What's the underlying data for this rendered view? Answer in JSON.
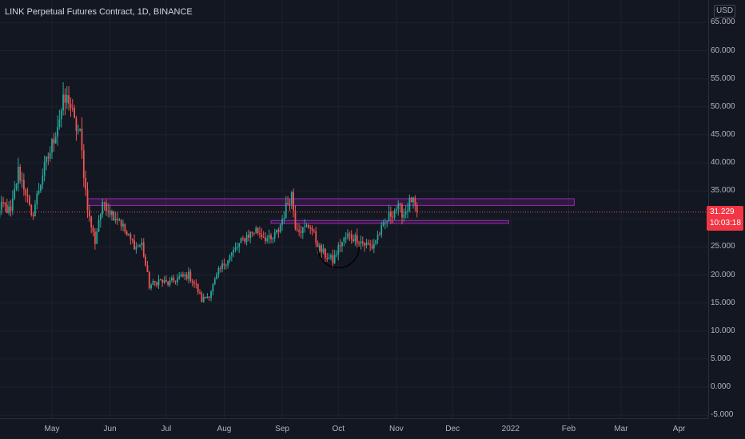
{
  "header": {
    "title": "LINK Perpetual Futures Contract, 1D, BINANCE",
    "currency": "USD"
  },
  "colors": {
    "background": "#131722",
    "grid": "#1e222d",
    "up": "#26a69a",
    "down": "#ef5350",
    "zone": "#9c27b0",
    "last_price_bg": "#f23645"
  },
  "chart_data": {
    "type": "candlestick",
    "title": "LINK Perpetual Futures Contract, 1D, BINANCE",
    "ylim": [
      -5,
      67
    ],
    "y_ticks": [
      65,
      60,
      55,
      50,
      45,
      40,
      35,
      30,
      25,
      20,
      15,
      10,
      5,
      0,
      -5
    ],
    "y_tick_labels": [
      "65.000",
      "60.000",
      "55.000",
      "50.000",
      "45.000",
      "40.000",
      "35.000",
      "30.000",
      "25.000",
      "20.000",
      "15.000",
      "10.000",
      "5.000",
      "0.000",
      "-5.000"
    ],
    "x_ticks": [
      "2021-05-01",
      "2021-06-01",
      "2021-07-01",
      "2021-08-01",
      "2021-09-01",
      "2021-10-01",
      "2021-11-01",
      "2021-12-01",
      "2022-01-01",
      "2022-02-01",
      "2022-03-01",
      "2022-04-01"
    ],
    "x_tick_labels": [
      "May",
      "Jun",
      "Jul",
      "Aug",
      "Sep",
      "Oct",
      "Nov",
      "Dec",
      "2022",
      "Feb",
      "Mar",
      "Apr"
    ],
    "last_price": "31.229",
    "countdown": "10:03:18",
    "grid": true,
    "keypoints": [
      [
        "2021-04-01",
        30.0
      ],
      [
        "2021-04-05",
        32.5
      ],
      [
        "2021-04-09",
        31.0
      ],
      [
        "2021-04-13",
        38.5
      ],
      [
        "2021-04-17",
        35.0
      ],
      [
        "2021-04-20",
        30.0
      ],
      [
        "2021-04-23",
        34.0
      ],
      [
        "2021-04-26",
        38.0
      ],
      [
        "2021-04-30",
        42.0
      ],
      [
        "2021-05-04",
        47.0
      ],
      [
        "2021-05-07",
        50.5
      ],
      [
        "2021-05-10",
        51.5
      ],
      [
        "2021-05-13",
        47.0
      ],
      [
        "2021-05-16",
        45.0
      ],
      [
        "2021-05-19",
        35.0
      ],
      [
        "2021-05-21",
        30.0
      ],
      [
        "2021-05-24",
        26.0
      ],
      [
        "2021-05-26",
        30.0
      ],
      [
        "2021-05-29",
        33.0
      ],
      [
        "2021-06-02",
        31.0
      ],
      [
        "2021-06-06",
        30.0
      ],
      [
        "2021-06-10",
        27.0
      ],
      [
        "2021-06-15",
        25.0
      ],
      [
        "2021-06-18",
        25.5
      ],
      [
        "2021-06-22",
        18.0
      ],
      [
        "2021-06-27",
        19.0
      ],
      [
        "2021-07-02",
        18.5
      ],
      [
        "2021-07-08",
        19.5
      ],
      [
        "2021-07-13",
        20.0
      ],
      [
        "2021-07-17",
        18.0
      ],
      [
        "2021-07-20",
        15.5
      ],
      [
        "2021-07-24",
        16.5
      ],
      [
        "2021-07-29",
        20.5
      ],
      [
        "2021-08-03",
        23.0
      ],
      [
        "2021-08-08",
        25.0
      ],
      [
        "2021-08-13",
        27.0
      ],
      [
        "2021-08-18",
        28.0
      ],
      [
        "2021-08-22",
        27.0
      ],
      [
        "2021-08-26",
        26.0
      ],
      [
        "2021-08-30",
        28.0
      ],
      [
        "2021-09-04",
        33.0
      ],
      [
        "2021-09-06",
        34.5
      ],
      [
        "2021-09-08",
        29.0
      ],
      [
        "2021-09-12",
        28.0
      ],
      [
        "2021-09-16",
        29.0
      ],
      [
        "2021-09-20",
        25.0
      ],
      [
        "2021-09-24",
        23.5
      ],
      [
        "2021-09-28",
        22.5
      ],
      [
        "2021-10-02",
        25.5
      ],
      [
        "2021-10-06",
        27.0
      ],
      [
        "2021-10-11",
        26.5
      ],
      [
        "2021-10-15",
        25.5
      ],
      [
        "2021-10-19",
        25.0
      ],
      [
        "2021-10-22",
        27.0
      ],
      [
        "2021-10-25",
        28.5
      ],
      [
        "2021-10-28",
        30.5
      ],
      [
        "2021-11-01",
        32.0
      ],
      [
        "2021-11-05",
        31.0
      ],
      [
        "2021-11-09",
        33.5
      ],
      [
        "2021-11-12",
        31.2
      ]
    ],
    "zones": [
      {
        "x_start": "2021-05-20",
        "x_end": "2022-02-04",
        "y_low": 32.4,
        "y_high": 33.6
      },
      {
        "x_start": "2021-08-26",
        "x_end": "2021-12-31",
        "y_low": 29.2,
        "y_high": 29.7
      }
    ],
    "arc_marker": {
      "center_date": "2021-10-01",
      "center_y": 24.8,
      "radius_days": 11
    }
  }
}
